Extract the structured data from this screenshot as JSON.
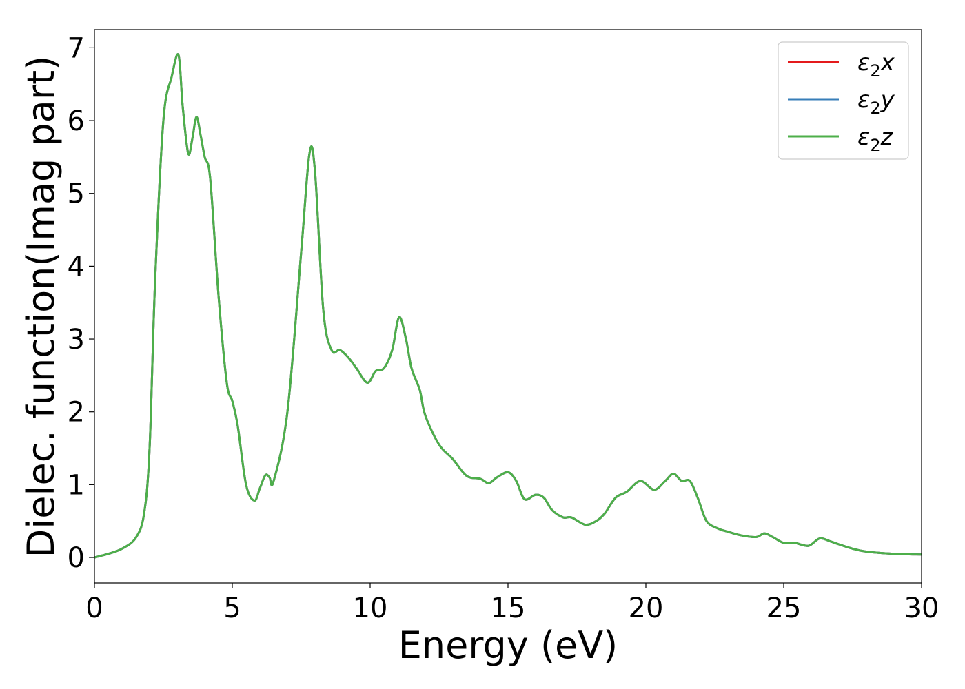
{
  "chart_data": {
    "type": "line",
    "title": "",
    "xlabel": "Energy (eV)",
    "ylabel": "Dielec. function(Imag part)",
    "xlim": [
      0,
      30
    ],
    "ylim": [
      -0.35,
      7.25
    ],
    "xticks": [
      0,
      5,
      10,
      15,
      20,
      25,
      30
    ],
    "xtick_labels": [
      "0",
      "5",
      "10",
      "15",
      "20",
      "25",
      "30"
    ],
    "yticks": [
      0,
      1,
      2,
      3,
      4,
      5,
      6,
      7
    ],
    "ytick_labels": [
      "0",
      "1",
      "2",
      "3",
      "4",
      "5",
      "6",
      "7"
    ],
    "grid": false,
    "legend_position": "top-right",
    "series": [
      {
        "name": "ε2x",
        "base": "ε",
        "sub": "2",
        "comp": "x",
        "color": "#e41a1c",
        "x": [
          0,
          0.5,
          1.0,
          1.5,
          1.8,
          2.0,
          2.2,
          2.5,
          2.8,
          3.05,
          3.2,
          3.4,
          3.55,
          3.7,
          3.85,
          4.0,
          4.2,
          4.5,
          4.8,
          5.0,
          5.2,
          5.5,
          5.8,
          6.0,
          6.2,
          6.35,
          6.5,
          7.0,
          7.5,
          7.8,
          8.0,
          8.3,
          8.6,
          8.9,
          9.2,
          9.5,
          9.9,
          10.2,
          10.5,
          10.8,
          11.05,
          11.3,
          11.5,
          11.8,
          12.0,
          12.5,
          13.0,
          13.5,
          14.0,
          14.3,
          14.6,
          15.0,
          15.3,
          15.6,
          16.0,
          16.3,
          16.6,
          17.0,
          17.3,
          17.8,
          18.2,
          18.5,
          18.9,
          19.3,
          19.8,
          20.3,
          20.7,
          21.0,
          21.3,
          21.6,
          21.9,
          22.2,
          22.6,
          23.0,
          23.5,
          24.0,
          24.3,
          24.6,
          25.0,
          25.4,
          25.9,
          26.3,
          26.7,
          27.0,
          27.5,
          28.0,
          29.0,
          30.0
        ],
        "y": [
          0.0,
          0.05,
          0.12,
          0.27,
          0.6,
          1.5,
          3.8,
          6.0,
          6.6,
          6.9,
          6.2,
          5.55,
          5.75,
          6.05,
          5.8,
          5.5,
          5.2,
          3.6,
          2.4,
          2.15,
          1.8,
          1.0,
          0.78,
          0.95,
          1.13,
          1.1,
          1.05,
          2.0,
          4.2,
          5.55,
          5.3,
          3.4,
          2.85,
          2.85,
          2.75,
          2.6,
          2.4,
          2.56,
          2.6,
          2.85,
          3.3,
          3.0,
          2.6,
          2.3,
          1.95,
          1.55,
          1.35,
          1.12,
          1.08,
          1.02,
          1.1,
          1.17,
          1.05,
          0.8,
          0.86,
          0.82,
          0.65,
          0.55,
          0.55,
          0.45,
          0.5,
          0.6,
          0.82,
          0.9,
          1.05,
          0.93,
          1.05,
          1.15,
          1.05,
          1.05,
          0.8,
          0.5,
          0.4,
          0.35,
          0.3,
          0.28,
          0.33,
          0.28,
          0.2,
          0.2,
          0.16,
          0.26,
          0.22,
          0.18,
          0.12,
          0.08,
          0.05,
          0.04
        ]
      },
      {
        "name": "ε2y",
        "base": "ε",
        "sub": "2",
        "comp": "y",
        "color": "#377eb8",
        "x": [
          0,
          0.5,
          1.0,
          1.5,
          1.8,
          2.0,
          2.2,
          2.5,
          2.8,
          3.05,
          3.2,
          3.4,
          3.55,
          3.7,
          3.85,
          4.0,
          4.2,
          4.5,
          4.8,
          5.0,
          5.2,
          5.5,
          5.8,
          6.0,
          6.2,
          6.35,
          6.5,
          7.0,
          7.5,
          7.8,
          8.0,
          8.3,
          8.6,
          8.9,
          9.2,
          9.5,
          9.9,
          10.2,
          10.5,
          10.8,
          11.05,
          11.3,
          11.5,
          11.8,
          12.0,
          12.5,
          13.0,
          13.5,
          14.0,
          14.3,
          14.6,
          15.0,
          15.3,
          15.6,
          16.0,
          16.3,
          16.6,
          17.0,
          17.3,
          17.8,
          18.2,
          18.5,
          18.9,
          19.3,
          19.8,
          20.3,
          20.7,
          21.0,
          21.3,
          21.6,
          21.9,
          22.2,
          22.6,
          23.0,
          23.5,
          24.0,
          24.3,
          24.6,
          25.0,
          25.4,
          25.9,
          26.3,
          26.7,
          27.0,
          27.5,
          28.0,
          29.0,
          30.0
        ],
        "y": [
          0.0,
          0.05,
          0.12,
          0.27,
          0.6,
          1.5,
          3.8,
          6.0,
          6.6,
          6.9,
          6.2,
          5.55,
          5.75,
          6.05,
          5.8,
          5.5,
          5.2,
          3.6,
          2.4,
          2.15,
          1.8,
          1.0,
          0.78,
          0.95,
          1.13,
          1.1,
          1.05,
          2.0,
          4.2,
          5.55,
          5.3,
          3.4,
          2.85,
          2.85,
          2.75,
          2.6,
          2.4,
          2.56,
          2.6,
          2.85,
          3.3,
          3.0,
          2.6,
          2.3,
          1.95,
          1.55,
          1.35,
          1.12,
          1.08,
          1.02,
          1.1,
          1.17,
          1.05,
          0.8,
          0.86,
          0.82,
          0.65,
          0.55,
          0.55,
          0.45,
          0.5,
          0.6,
          0.82,
          0.9,
          1.05,
          0.93,
          1.05,
          1.15,
          1.05,
          1.05,
          0.8,
          0.5,
          0.4,
          0.35,
          0.3,
          0.28,
          0.33,
          0.28,
          0.2,
          0.2,
          0.16,
          0.26,
          0.22,
          0.18,
          0.12,
          0.08,
          0.05,
          0.04
        ]
      },
      {
        "name": "ε2z",
        "base": "ε",
        "sub": "2",
        "comp": "z",
        "color": "#4daf4a",
        "x": [
          0,
          0.5,
          1.0,
          1.5,
          1.8,
          2.0,
          2.2,
          2.5,
          2.8,
          3.05,
          3.2,
          3.4,
          3.55,
          3.7,
          3.85,
          4.0,
          4.2,
          4.5,
          4.8,
          5.0,
          5.2,
          5.5,
          5.8,
          6.0,
          6.2,
          6.35,
          6.5,
          7.0,
          7.5,
          7.8,
          8.0,
          8.3,
          8.6,
          8.9,
          9.2,
          9.5,
          9.9,
          10.2,
          10.5,
          10.8,
          11.05,
          11.3,
          11.5,
          11.8,
          12.0,
          12.5,
          13.0,
          13.5,
          14.0,
          14.3,
          14.6,
          15.0,
          15.3,
          15.6,
          16.0,
          16.3,
          16.6,
          17.0,
          17.3,
          17.8,
          18.2,
          18.5,
          18.9,
          19.3,
          19.8,
          20.3,
          20.7,
          21.0,
          21.3,
          21.6,
          21.9,
          22.2,
          22.6,
          23.0,
          23.5,
          24.0,
          24.3,
          24.6,
          25.0,
          25.4,
          25.9,
          26.3,
          26.7,
          27.0,
          27.5,
          28.0,
          29.0,
          30.0
        ],
        "y": [
          0.0,
          0.05,
          0.12,
          0.27,
          0.6,
          1.5,
          3.8,
          6.0,
          6.6,
          6.9,
          6.2,
          5.55,
          5.75,
          6.05,
          5.8,
          5.5,
          5.2,
          3.6,
          2.4,
          2.15,
          1.8,
          1.0,
          0.78,
          0.95,
          1.13,
          1.1,
          1.05,
          2.0,
          4.2,
          5.55,
          5.3,
          3.4,
          2.85,
          2.85,
          2.75,
          2.6,
          2.4,
          2.56,
          2.6,
          2.85,
          3.3,
          3.0,
          2.6,
          2.3,
          1.95,
          1.55,
          1.35,
          1.12,
          1.08,
          1.02,
          1.1,
          1.17,
          1.05,
          0.8,
          0.86,
          0.82,
          0.65,
          0.55,
          0.55,
          0.45,
          0.5,
          0.6,
          0.82,
          0.9,
          1.05,
          0.93,
          1.05,
          1.15,
          1.05,
          1.05,
          0.8,
          0.5,
          0.4,
          0.35,
          0.3,
          0.28,
          0.33,
          0.28,
          0.2,
          0.2,
          0.16,
          0.26,
          0.22,
          0.18,
          0.12,
          0.08,
          0.05,
          0.04
        ]
      }
    ]
  }
}
